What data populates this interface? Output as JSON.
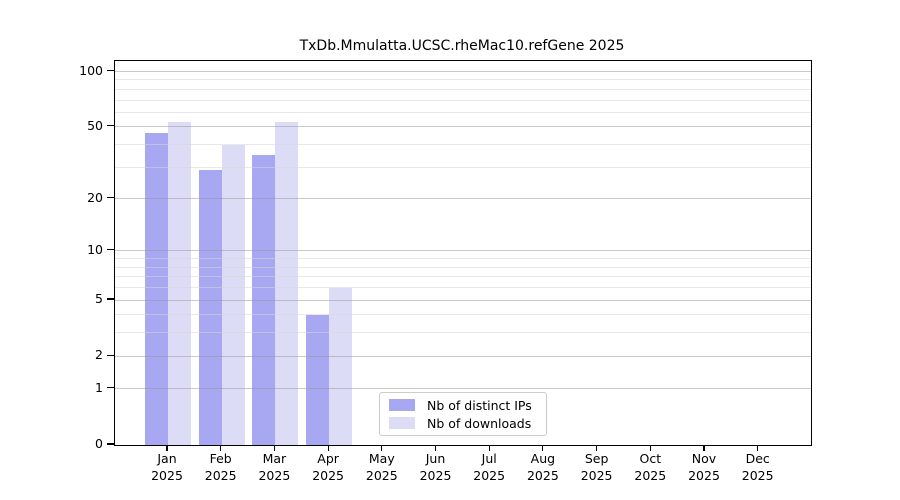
{
  "chart_data": {
    "type": "bar",
    "title": "TxDb.Mmulatta.UCSC.rheMac10.refGene 2025",
    "categories": [
      "Jan",
      "Feb",
      "Mar",
      "Apr",
      "May",
      "Jun",
      "Jul",
      "Aug",
      "Sep",
      "Oct",
      "Nov",
      "Dec"
    ],
    "year_label": "2025",
    "series": [
      {
        "name": "Nb of distinct IPs",
        "color": "#a7a7f2",
        "values": [
          46,
          29,
          35,
          4,
          0,
          0,
          0,
          0,
          0,
          0,
          0,
          0
        ]
      },
      {
        "name": "Nb of downloads",
        "color": "#dcdcf7",
        "values": [
          53,
          40,
          53,
          6,
          0,
          0,
          0,
          0,
          0,
          0,
          0,
          0
        ]
      }
    ],
    "y_scale": "log1p",
    "y_axis_ticks": [
      0,
      1,
      2,
      5,
      10,
      20,
      50,
      100
    ],
    "y_minor_gridlines": [
      3,
      4,
      6,
      7,
      8,
      9,
      30,
      40,
      60,
      70,
      80,
      90
    ],
    "y_max": 114,
    "xlabel": "",
    "ylabel": "",
    "grid": "horizontal",
    "legend_position": "inside-bottom-center"
  }
}
